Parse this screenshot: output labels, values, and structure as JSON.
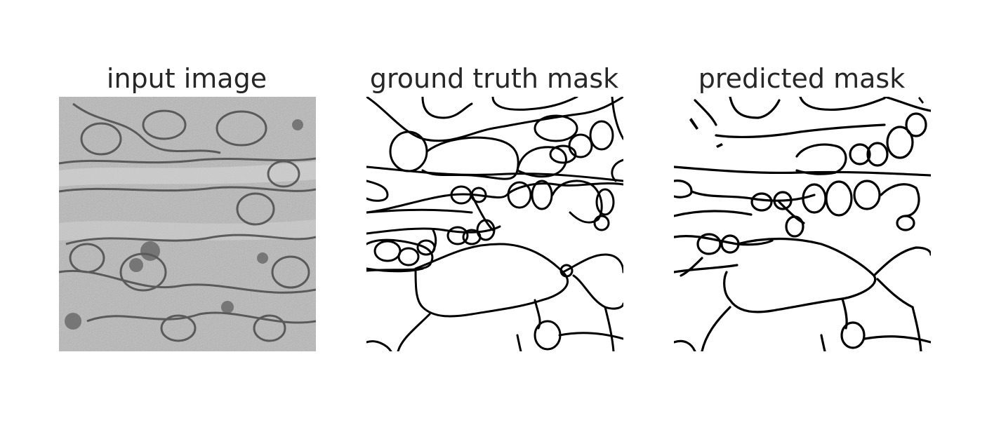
{
  "panels": [
    {
      "title": "input image"
    },
    {
      "title": "ground truth mask"
    },
    {
      "title": "predicted mask"
    }
  ],
  "colors": {
    "background": "#ffffff",
    "title_text": "#262626",
    "membrane": "#000000",
    "micrograph_base": "#b4b4b4"
  }
}
